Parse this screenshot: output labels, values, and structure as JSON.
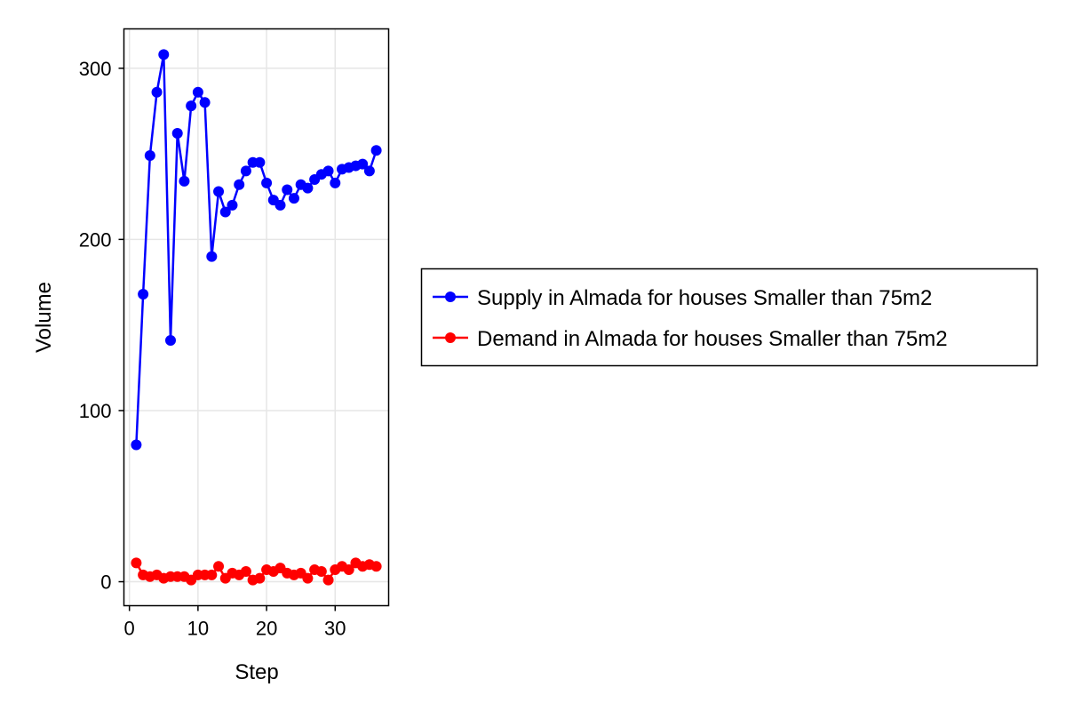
{
  "chart_data": {
    "type": "line",
    "title": "",
    "xlabel": "Step",
    "ylabel": "Volume",
    "xlim": [
      -0.8,
      37.8
    ],
    "ylim": [
      -14,
      323
    ],
    "x_ticks": [
      0,
      10,
      20,
      30
    ],
    "y_ticks": [
      0,
      100,
      200,
      300
    ],
    "grid": true,
    "legend_position": "right, outside plot",
    "x": [
      1,
      2,
      3,
      4,
      5,
      6,
      7,
      8,
      9,
      10,
      11,
      12,
      13,
      14,
      15,
      16,
      17,
      18,
      19,
      20,
      21,
      22,
      23,
      24,
      25,
      26,
      27,
      28,
      29,
      30,
      31,
      32,
      33,
      34,
      35,
      36
    ],
    "series": [
      {
        "name": "Supply in Almada for houses Smaller than 75m2",
        "color": "#0000ff",
        "values": [
          80,
          168,
          249,
          286,
          308,
          141,
          262,
          234,
          278,
          286,
          280,
          190,
          228,
          216,
          220,
          232,
          240,
          245,
          245,
          233,
          223,
          220,
          229,
          224,
          232,
          230,
          235,
          238,
          240,
          233,
          241,
          242,
          243,
          244,
          240,
          252
        ]
      },
      {
        "name": "Demand in Almada for houses Smaller than 75m2",
        "color": "#ff0000",
        "values": [
          11,
          4,
          3,
          4,
          2,
          3,
          3,
          3,
          1,
          4,
          4,
          4,
          9,
          2,
          5,
          4,
          6,
          1,
          2,
          7,
          6,
          8,
          5,
          4,
          5,
          2,
          7,
          6,
          1,
          7,
          9,
          7,
          11,
          9,
          10,
          9
        ]
      }
    ]
  }
}
